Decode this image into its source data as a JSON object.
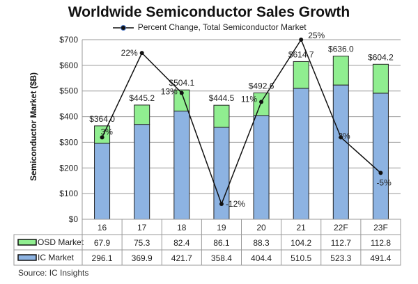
{
  "chart_data": {
    "type": "bar",
    "title": "Worldwide Semiconductor Sales Growth",
    "ylabel": "Semiconductor Market ($B)",
    "ylim": [
      0,
      700
    ],
    "yticks": [
      "$0",
      "$100",
      "$200",
      "$300",
      "$400",
      "$500",
      "$600",
      "$700"
    ],
    "categories": [
      "16",
      "17",
      "18",
      "19",
      "20",
      "21",
      "22F",
      "23F"
    ],
    "series": [
      {
        "name": "OSD Market",
        "color": "#90ee90",
        "values": [
          67.9,
          75.3,
          82.4,
          86.1,
          88.3,
          104.2,
          112.7,
          112.8
        ]
      },
      {
        "name": "IC Market",
        "color": "#8db3e2",
        "values": [
          296.1,
          369.9,
          421.7,
          358.4,
          404.4,
          510.5,
          523.3,
          491.4
        ]
      }
    ],
    "totals": [
      "$364.0",
      "$445.2",
      "$504.1",
      "$444.5",
      "$492.6",
      "$614.7",
      "$636.0",
      "$604.2"
    ],
    "line": {
      "name": "Percent Change, Total Semiconductor Market",
      "values": [
        3,
        22,
        13,
        -12,
        11,
        25,
        3,
        -5
      ],
      "labels": [
        "3%",
        "22%",
        "13%",
        "-12%",
        "11%",
        "25%",
        "3%",
        "-5%"
      ]
    },
    "grid": true,
    "legend": "top"
  },
  "source": "Source: IC Insights"
}
